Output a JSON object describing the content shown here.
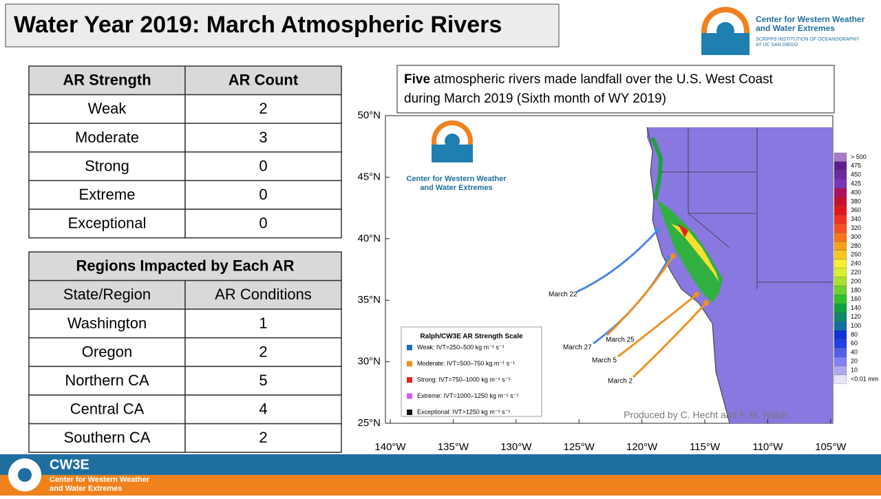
{
  "header": {
    "title": "Water Year 2019: March Atmospheric Rivers",
    "logo_text": [
      "Center for Western Weather",
      "and Water Extremes"
    ],
    "logo_subtext": [
      "SCRIPPS INSTITUTION OF OCEANOGRAPHY",
      "AT UC SAN DIEGO"
    ]
  },
  "strength_table": {
    "columns": [
      "AR Strength",
      "AR Count"
    ],
    "rows": [
      [
        "Weak",
        2
      ],
      [
        "Moderate",
        3
      ],
      [
        "Strong",
        0
      ],
      [
        "Extreme",
        0
      ],
      [
        "Exceptional",
        0
      ]
    ]
  },
  "regions_table": {
    "title": "Regions Impacted by Each AR",
    "columns": [
      "State/Region",
      "AR Conditions"
    ],
    "rows": [
      [
        "Washington",
        1
      ],
      [
        "Oregon",
        2
      ],
      [
        "Northern CA",
        5
      ],
      [
        "Central CA",
        4
      ],
      [
        "Southern CA",
        2
      ]
    ]
  },
  "map": {
    "annotation_bold": "Five",
    "annotation_lines": [
      "atmospheric rivers made landfall over the U.S. West Coast",
      "during March 2019 (Sixth month of WY 2019)"
    ],
    "lat_labels": [
      "50°N",
      "45°N",
      "40°N",
      "35°N",
      "30°N",
      "25°N"
    ],
    "lon_labels": [
      "140°W",
      "135°W",
      "130°W",
      "125°W",
      "120°W",
      "115°W",
      "110°W",
      "105°W"
    ],
    "logo_text": [
      "Center for Western Weather",
      "and Water Extremes"
    ],
    "legend": {
      "title": "Ralph/CW3E AR Strength Scale",
      "items": [
        {
          "label": "Weak: IVT=250–500 kg m⁻¹ s⁻¹",
          "color": "#1f6fc6"
        },
        {
          "label": "Moderate: IVT=500–750 kg m⁻¹ s⁻¹",
          "color": "#f0901e"
        },
        {
          "label": "Strong: IVT=750–1000 kg m⁻¹ s⁻¹",
          "color": "#e8201c"
        },
        {
          "label": "Extreme: IVT=1000–1250 kg m⁻¹ s⁻¹",
          "color": "#d45cf0"
        },
        {
          "label": "Exceptional: IVT>1250 kg m⁻¹ s⁻¹",
          "color": "#111111"
        }
      ]
    },
    "arrows": [
      {
        "label": "March 22",
        "color": "#4a86e8"
      },
      {
        "label": "March 27",
        "color": "#4a86e8"
      },
      {
        "label": "March 25",
        "color": "#f0901e"
      },
      {
        "label": "March 5",
        "color": "#f0901e"
      },
      {
        "label": "March 2",
        "color": "#f0901e"
      }
    ],
    "colorbar": [
      {
        "label": "> 500",
        "color": "#a77bc8"
      },
      {
        "label": "475",
        "color": "#5a1f8c"
      },
      {
        "label": "450",
        "color": "#6a2aa0"
      },
      {
        "label": "425",
        "color": "#7a36b4"
      },
      {
        "label": "400",
        "color": "#b01060"
      },
      {
        "label": "380",
        "color": "#c8102e"
      },
      {
        "label": "360",
        "color": "#e01818"
      },
      {
        "label": "340",
        "color": "#f03020"
      },
      {
        "label": "320",
        "color": "#f85020"
      },
      {
        "label": "300",
        "color": "#f87818"
      },
      {
        "label": "280",
        "color": "#f8a018"
      },
      {
        "label": "260",
        "color": "#f8c820"
      },
      {
        "label": "240",
        "color": "#f8f030"
      },
      {
        "label": "220",
        "color": "#d8f030"
      },
      {
        "label": "200",
        "color": "#a8e030"
      },
      {
        "label": "180",
        "color": "#70d030"
      },
      {
        "label": "160",
        "color": "#30c030"
      },
      {
        "label": "140",
        "color": "#10a040"
      },
      {
        "label": "120",
        "color": "#108868"
      },
      {
        "label": "100",
        "color": "#1070a0"
      },
      {
        "label": "80",
        "color": "#1030d8"
      },
      {
        "label": "60",
        "color": "#2040e8"
      },
      {
        "label": "40",
        "color": "#5060e8"
      },
      {
        "label": "20",
        "color": "#8080f0"
      },
      {
        "label": "10",
        "color": "#b0a8f0"
      },
      {
        "label": "<0.01 mm",
        "color": "#e8e4f8"
      }
    ],
    "credit": "Produced by C. Hecht and F. M. Ralph"
  },
  "footer": {
    "brand": "CW3E",
    "text": [
      "Center for Western Weather",
      "and Water Extremes"
    ]
  }
}
